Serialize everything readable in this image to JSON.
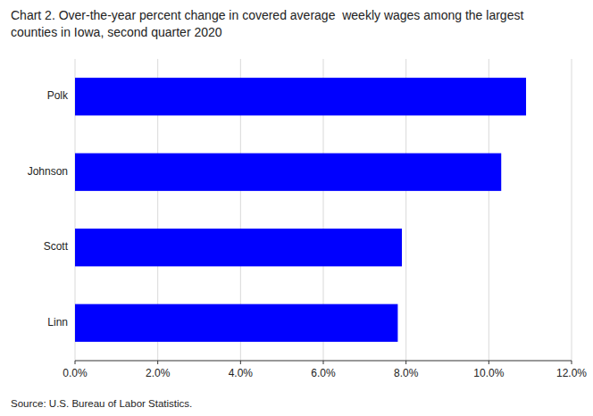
{
  "chart_data": {
    "type": "bar",
    "orientation": "horizontal",
    "title": [
      "Chart 2. Over-the-year percent change in covered average  weekly wages among the largest",
      "counties in Iowa, second quarter 2020"
    ],
    "source": "Source: U.S. Bureau of Labor Statistics.",
    "categories": [
      "Linn",
      "Scott",
      "Johnson",
      "Polk"
    ],
    "values": [
      0.078,
      0.079,
      0.103,
      0.109
    ],
    "color": "#0000FF",
    "xlim": [
      0,
      0.12
    ],
    "xticks": [
      {
        "value": 0.0,
        "label": "0.0%"
      },
      {
        "value": 0.02,
        "label": "2.0%"
      },
      {
        "value": 0.04,
        "label": "4.0%"
      },
      {
        "value": 0.06,
        "label": "6.0%"
      },
      {
        "value": 0.08,
        "label": "8.0%"
      },
      {
        "value": 0.1,
        "label": "10.0%"
      },
      {
        "value": 0.12,
        "label": "12.0%"
      }
    ],
    "grid": true
  }
}
